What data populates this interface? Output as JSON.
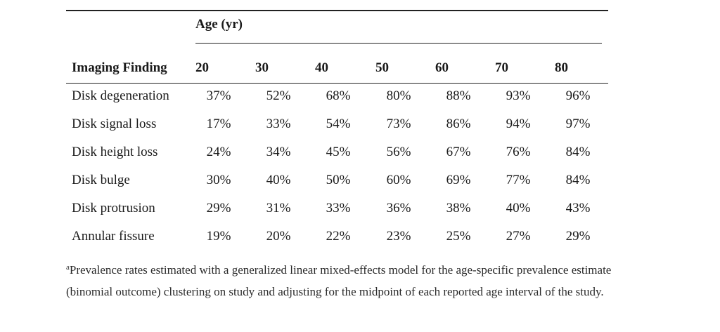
{
  "table": {
    "age_header": "Age (yr)",
    "finding_header": "Imaging Finding",
    "ages": [
      "20",
      "30",
      "40",
      "50",
      "60",
      "70",
      "80"
    ],
    "rows": [
      {
        "label": "Disk degeneration",
        "values": [
          "37%",
          "52%",
          "68%",
          "80%",
          "88%",
          "93%",
          "96%"
        ]
      },
      {
        "label": "Disk signal loss",
        "values": [
          "17%",
          "33%",
          "54%",
          "73%",
          "86%",
          "94%",
          "97%"
        ]
      },
      {
        "label": "Disk height loss",
        "values": [
          "24%",
          "34%",
          "45%",
          "56%",
          "67%",
          "76%",
          "84%"
        ]
      },
      {
        "label": "Disk bulge",
        "values": [
          "30%",
          "40%",
          "50%",
          "60%",
          "69%",
          "77%",
          "84%"
        ]
      },
      {
        "label": "Disk protrusion",
        "values": [
          "29%",
          "31%",
          "33%",
          "36%",
          "38%",
          "40%",
          "43%"
        ]
      },
      {
        "label": "Annular fissure",
        "values": [
          "19%",
          "20%",
          "22%",
          "23%",
          "25%",
          "27%",
          "29%"
        ]
      }
    ]
  },
  "footnote": {
    "marker": "a",
    "text": "Prevalence rates estimated with a generalized linear mixed-effects model for the age-specific prevalence estimate (binomial outcome) clustering on study and adjusting for the midpoint of each reported age interval of the study."
  }
}
